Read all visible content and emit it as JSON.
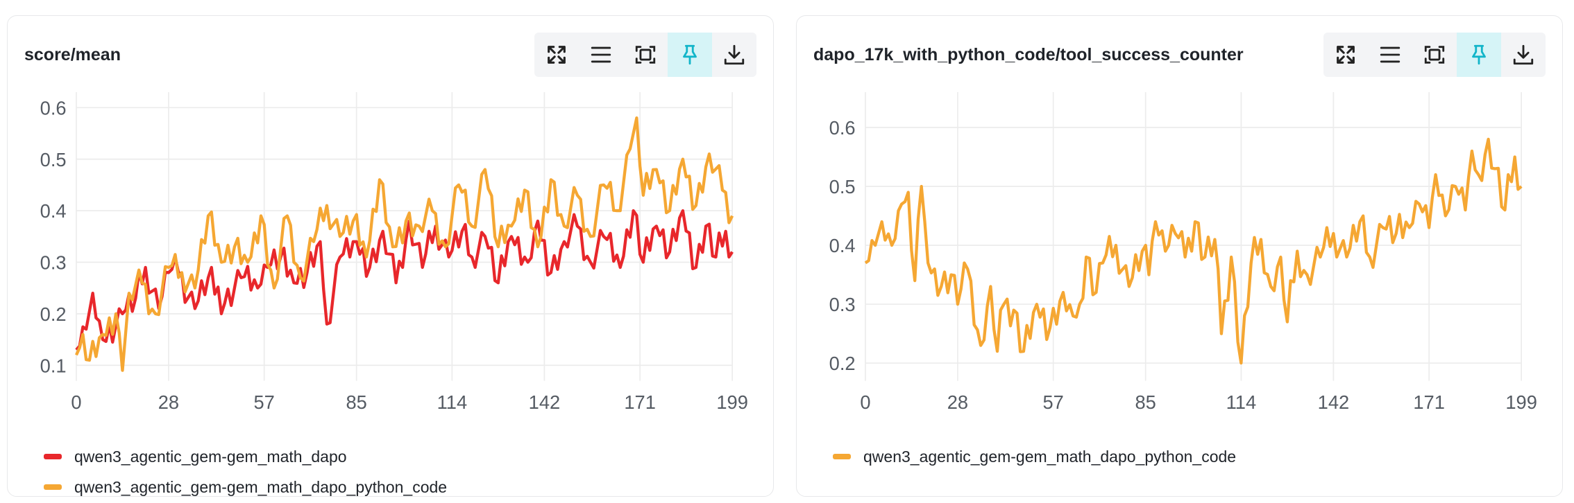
{
  "colors": {
    "red": "#e8272b",
    "orange": "#f5a733",
    "grid": "#ececec",
    "tick": "#555b63",
    "pin_active": "#12b5c9"
  },
  "toolbar_icons": [
    "expand-icon",
    "menu-icon",
    "fit-screen-icon",
    "pin-icon",
    "download-icon"
  ],
  "left_panel": {
    "title": "score/mean",
    "legend": [
      {
        "label": "qwen3_agentic_gem-gem_math_dapo",
        "color": "#e8272b"
      },
      {
        "label": "qwen3_agentic_gem-gem_math_dapo_python_code",
        "color": "#f5a733"
      }
    ]
  },
  "right_panel": {
    "title": "dapo_17k_with_python_code/tool_success_counter",
    "legend": [
      {
        "label": "qwen3_agentic_gem-gem_math_dapo_python_code",
        "color": "#f5a733"
      }
    ]
  },
  "chart_data": [
    {
      "type": "line",
      "title": "score/mean",
      "x_ticks": [
        0,
        28,
        57,
        85,
        114,
        142,
        171,
        199
      ],
      "y_ticks": [
        0.1,
        0.2,
        0.3,
        0.4,
        0.5,
        0.6
      ],
      "xlim": [
        0,
        199
      ],
      "ylim": [
        0.07,
        0.63
      ],
      "grid": true,
      "legend_position": "bottom",
      "series_keyframes": [
        {
          "name": "qwen3_agentic_gem-gem_math_dapo",
          "color": "#e8272b",
          "keyframes": [
            [
              0,
              0.13
            ],
            [
              3,
              0.17
            ],
            [
              5,
              0.24
            ],
            [
              8,
              0.15
            ],
            [
              14,
              0.2
            ],
            [
              18,
              0.23
            ],
            [
              21,
              0.29
            ],
            [
              25,
              0.21
            ],
            [
              28,
              0.28
            ],
            [
              31,
              0.28
            ],
            [
              36,
              0.21
            ],
            [
              40,
              0.27
            ],
            [
              45,
              0.22
            ],
            [
              50,
              0.27
            ],
            [
              55,
              0.25
            ],
            [
              58,
              0.29
            ],
            [
              62,
              0.31
            ],
            [
              66,
              0.26
            ],
            [
              70,
              0.28
            ],
            [
              74,
              0.34
            ],
            [
              76,
              0.18
            ],
            [
              80,
              0.31
            ],
            [
              85,
              0.34
            ],
            [
              89,
              0.29
            ],
            [
              93,
              0.36
            ],
            [
              97,
              0.26
            ],
            [
              101,
              0.38
            ],
            [
              105,
              0.29
            ],
            [
              109,
              0.37
            ],
            [
              113,
              0.31
            ],
            [
              117,
              0.36
            ],
            [
              120,
              0.31
            ],
            [
              124,
              0.35
            ],
            [
              128,
              0.26
            ],
            [
              132,
              0.35
            ],
            [
              137,
              0.3
            ],
            [
              140,
              0.38
            ],
            [
              144,
              0.28
            ],
            [
              148,
              0.34
            ],
            [
              152,
              0.37
            ],
            [
              156,
              0.3
            ],
            [
              160,
              0.35
            ],
            [
              165,
              0.29
            ],
            [
              169,
              0.4
            ],
            [
              172,
              0.3
            ],
            [
              176,
              0.37
            ],
            [
              180,
              0.32
            ],
            [
              184,
              0.4
            ],
            [
              188,
              0.29
            ],
            [
              191,
              0.37
            ],
            [
              194,
              0.31
            ],
            [
              197,
              0.36
            ],
            [
              199,
              0.32
            ]
          ]
        },
        {
          "name": "qwen3_agentic_gem-gem_math_dapo_python_code",
          "color": "#f5a733",
          "keyframes": [
            [
              0,
              0.12
            ],
            [
              2,
              0.16
            ],
            [
              4,
              0.11
            ],
            [
              8,
              0.16
            ],
            [
              12,
              0.2
            ],
            [
              14,
              0.09
            ],
            [
              16,
              0.24
            ],
            [
              20,
              0.26
            ],
            [
              24,
              0.2
            ],
            [
              28,
              0.29
            ],
            [
              32,
              0.28
            ],
            [
              36,
              0.25
            ],
            [
              40,
              0.39
            ],
            [
              44,
              0.3
            ],
            [
              48,
              0.33
            ],
            [
              52,
              0.3
            ],
            [
              56,
              0.39
            ],
            [
              60,
              0.25
            ],
            [
              64,
              0.39
            ],
            [
              68,
              0.27
            ],
            [
              72,
              0.34
            ],
            [
              76,
              0.41
            ],
            [
              80,
              0.35
            ],
            [
              84,
              0.38
            ],
            [
              88,
              0.31
            ],
            [
              92,
              0.46
            ],
            [
              96,
              0.33
            ],
            [
              100,
              0.38
            ],
            [
              104,
              0.37
            ],
            [
              108,
              0.4
            ],
            [
              112,
              0.33
            ],
            [
              116,
              0.45
            ],
            [
              120,
              0.37
            ],
            [
              124,
              0.48
            ],
            [
              128,
              0.33
            ],
            [
              132,
              0.37
            ],
            [
              136,
              0.44
            ],
            [
              140,
              0.33
            ],
            [
              144,
              0.46
            ],
            [
              148,
              0.37
            ],
            [
              152,
              0.43
            ],
            [
              156,
              0.35
            ],
            [
              160,
              0.45
            ],
            [
              164,
              0.4
            ],
            [
              168,
              0.52
            ],
            [
              170,
              0.58
            ],
            [
              172,
              0.43
            ],
            [
              176,
              0.48
            ],
            [
              180,
              0.4
            ],
            [
              184,
              0.5
            ],
            [
              188,
              0.41
            ],
            [
              192,
              0.51
            ],
            [
              196,
              0.44
            ],
            [
              199,
              0.39
            ]
          ]
        }
      ]
    },
    {
      "type": "line",
      "title": "dapo_17k_with_python_code/tool_success_counter",
      "x_ticks": [
        0,
        28,
        57,
        85,
        114,
        142,
        171,
        199
      ],
      "y_ticks": [
        0.2,
        0.3,
        0.4,
        0.5,
        0.6
      ],
      "xlim": [
        0,
        199
      ],
      "ylim": [
        0.17,
        0.66
      ],
      "grid": true,
      "legend_position": "bottom",
      "series_keyframes": [
        {
          "name": "qwen3_agentic_gem-gem_math_dapo_python_code",
          "color": "#f5a733",
          "keyframes": [
            [
              0,
              0.37
            ],
            [
              3,
              0.4
            ],
            [
              5,
              0.44
            ],
            [
              8,
              0.4
            ],
            [
              11,
              0.47
            ],
            [
              13,
              0.49
            ],
            [
              15,
              0.34
            ],
            [
              17,
              0.5
            ],
            [
              19,
              0.37
            ],
            [
              21,
              0.36
            ],
            [
              23,
              0.33
            ],
            [
              26,
              0.35
            ],
            [
              28,
              0.3
            ],
            [
              31,
              0.36
            ],
            [
              35,
              0.23
            ],
            [
              38,
              0.33
            ],
            [
              40,
              0.22
            ],
            [
              42,
              0.3
            ],
            [
              45,
              0.29
            ],
            [
              48,
              0.22
            ],
            [
              52,
              0.3
            ],
            [
              56,
              0.26
            ],
            [
              60,
              0.32
            ],
            [
              63,
              0.28
            ],
            [
              65,
              0.3
            ],
            [
              67,
              0.38
            ],
            [
              70,
              0.32
            ],
            [
              72,
              0.37
            ],
            [
              76,
              0.4
            ],
            [
              80,
              0.33
            ],
            [
              84,
              0.39
            ],
            [
              86,
              0.35
            ],
            [
              88,
              0.44
            ],
            [
              91,
              0.39
            ],
            [
              94,
              0.42
            ],
            [
              97,
              0.38
            ],
            [
              100,
              0.44
            ],
            [
              103,
              0.38
            ],
            [
              106,
              0.41
            ],
            [
              108,
              0.25
            ],
            [
              111,
              0.38
            ],
            [
              114,
              0.2
            ],
            [
              117,
              0.37
            ],
            [
              120,
              0.41
            ],
            [
              123,
              0.33
            ],
            [
              126,
              0.38
            ],
            [
              128,
              0.27
            ],
            [
              131,
              0.39
            ],
            [
              134,
              0.35
            ],
            [
              138,
              0.38
            ],
            [
              142,
              0.42
            ],
            [
              146,
              0.38
            ],
            [
              150,
              0.44
            ],
            [
              153,
              0.38
            ],
            [
              157,
              0.43
            ],
            [
              161,
              0.42
            ],
            [
              165,
              0.43
            ],
            [
              168,
              0.47
            ],
            [
              171,
              0.43
            ],
            [
              173,
              0.52
            ],
            [
              176,
              0.45
            ],
            [
              179,
              0.5
            ],
            [
              182,
              0.46
            ],
            [
              184,
              0.56
            ],
            [
              186,
              0.52
            ],
            [
              189,
              0.58
            ],
            [
              191,
              0.53
            ],
            [
              194,
              0.46
            ],
            [
              197,
              0.55
            ],
            [
              199,
              0.5
            ]
          ]
        }
      ]
    }
  ]
}
